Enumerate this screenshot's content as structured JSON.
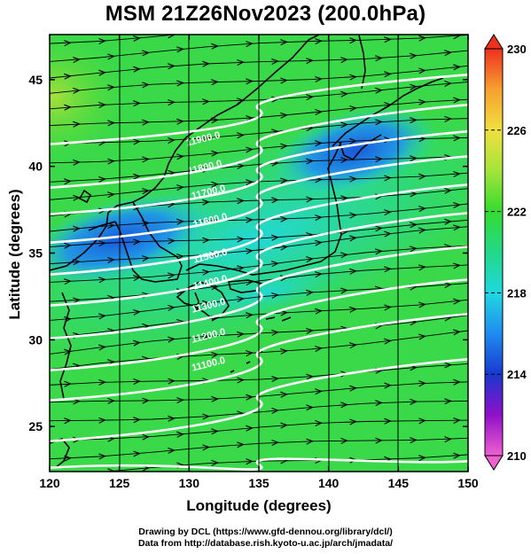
{
  "title": "MSM 21Z26Nov2023 (200.0hPa)",
  "map": {
    "xlabel": "Longitude (degrees)",
    "ylabel": "Latitude  (degrees)",
    "xlim": [
      120,
      150
    ],
    "ylim": [
      22.4,
      47.6
    ],
    "xticks": [
      "120",
      "125",
      "130",
      "135",
      "140",
      "145",
      "150"
    ],
    "yticks": [
      "25",
      "30",
      "35",
      "40",
      "45"
    ],
    "contour_labels": [
      "11900.0",
      "11800.0",
      "11700.0",
      "11600.0",
      "11500.0",
      "11400.0",
      "11300.0",
      "11200.0",
      "11100.0"
    ]
  },
  "colorbar": {
    "min": 210,
    "max": 230,
    "ticks": [
      "230",
      "226",
      "222",
      "218",
      "214",
      "210"
    ],
    "colors": [
      "#f060d0",
      "#9010c8",
      "#1838d0",
      "#1f8cf0",
      "#20d8e0",
      "#22d888",
      "#34dc30",
      "#a4e43a",
      "#f0e040",
      "#f7a030",
      "#ee3020"
    ]
  },
  "credits": {
    "line1": "Drawing by DCL (https://www.gfd-dennou.org/library/dcl/)",
    "line2": "Data from http://database.rish.kyoto-u.ac.jp/arch/jmadata/"
  }
}
